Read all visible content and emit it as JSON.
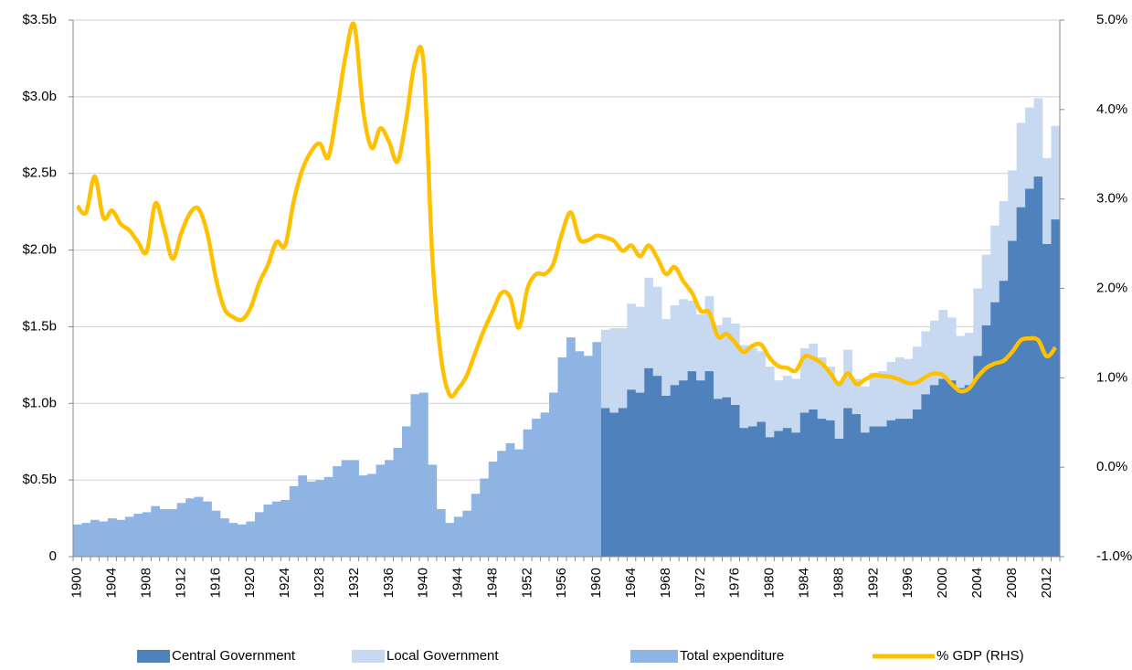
{
  "chart_data": {
    "type": "bar",
    "categories": [
      "1900",
      null,
      null,
      null,
      "1904",
      null,
      null,
      null,
      "1908",
      null,
      null,
      null,
      "1912",
      null,
      null,
      null,
      "1916",
      null,
      null,
      null,
      "1920",
      null,
      null,
      null,
      "1924",
      null,
      null,
      null,
      "1928",
      null,
      null,
      null,
      "1932",
      null,
      null,
      null,
      "1936",
      null,
      null,
      null,
      "1940",
      null,
      null,
      null,
      "1944",
      null,
      null,
      null,
      "1948",
      null,
      null,
      null,
      "1952",
      null,
      null,
      null,
      "1956",
      null,
      null,
      null,
      "1960",
      null,
      null,
      null,
      "1964",
      null,
      null,
      null,
      "1968",
      null,
      null,
      null,
      "1972",
      null,
      null,
      null,
      "1976",
      null,
      null,
      null,
      "1980",
      null,
      null,
      null,
      "1984",
      null,
      null,
      null,
      "1988",
      null,
      null,
      null,
      "1992",
      null,
      null,
      null,
      "1996",
      null,
      null,
      null,
      "2000",
      null,
      null,
      null,
      "2004",
      null,
      null,
      null,
      "2008",
      null,
      null,
      null,
      "2012",
      null
    ],
    "series": [
      {
        "name": "Central Government",
        "color": "#4f81bd",
        "values": [
          null,
          null,
          null,
          null,
          null,
          null,
          null,
          null,
          null,
          null,
          null,
          null,
          null,
          null,
          null,
          null,
          null,
          null,
          null,
          null,
          null,
          null,
          null,
          null,
          null,
          null,
          null,
          null,
          null,
          null,
          null,
          null,
          null,
          null,
          null,
          null,
          null,
          null,
          null,
          null,
          null,
          null,
          null,
          null,
          null,
          null,
          null,
          null,
          null,
          null,
          null,
          null,
          null,
          null,
          null,
          null,
          null,
          null,
          null,
          null,
          null,
          0.97,
          0.94,
          0.97,
          1.09,
          1.07,
          1.23,
          1.18,
          1.05,
          1.12,
          1.15,
          1.21,
          1.15,
          1.21,
          1.03,
          1.04,
          0.99,
          0.84,
          0.85,
          0.88,
          0.78,
          0.82,
          0.84,
          0.81,
          0.94,
          0.96,
          0.9,
          0.89,
          0.77,
          0.97,
          0.93,
          0.81,
          0.85,
          0.85,
          0.89,
          0.9,
          0.9,
          0.96,
          1.06,
          1.12,
          1.16,
          1.15,
          1.1,
          1.12,
          1.31,
          1.51,
          1.66,
          1.8,
          2.06,
          2.28,
          2.4,
          2.48,
          2.04,
          2.2
        ]
      },
      {
        "name": "Local Government",
        "color": "#c6d9f1",
        "values": [
          null,
          null,
          null,
          null,
          null,
          null,
          null,
          null,
          null,
          null,
          null,
          null,
          null,
          null,
          null,
          null,
          null,
          null,
          null,
          null,
          null,
          null,
          null,
          null,
          null,
          null,
          null,
          null,
          null,
          null,
          null,
          null,
          null,
          null,
          null,
          null,
          null,
          null,
          null,
          null,
          null,
          null,
          null,
          null,
          null,
          null,
          null,
          null,
          null,
          null,
          null,
          null,
          null,
          null,
          null,
          null,
          null,
          null,
          null,
          null,
          null,
          0.51,
          0.55,
          0.52,
          0.56,
          0.56,
          0.59,
          0.58,
          0.5,
          0.52,
          0.53,
          0.46,
          0.43,
          0.49,
          0.48,
          0.52,
          0.53,
          0.54,
          0.51,
          0.46,
          0.46,
          0.33,
          0.34,
          0.35,
          0.42,
          0.43,
          0.4,
          0.35,
          0.36,
          0.38,
          0.23,
          0.3,
          0.35,
          0.36,
          0.38,
          0.4,
          0.39,
          0.41,
          0.41,
          0.42,
          0.45,
          0.41,
          0.34,
          0.34,
          0.44,
          0.46,
          0.5,
          0.52,
          0.46,
          0.55,
          0.53,
          0.51,
          0.56,
          0.61
        ]
      },
      {
        "name": "Total expenditure",
        "color": "#8eb4e3",
        "values": [
          0.21,
          0.22,
          0.24,
          0.23,
          0.25,
          0.24,
          0.26,
          0.28,
          0.29,
          0.33,
          0.31,
          0.31,
          0.35,
          0.38,
          0.39,
          0.36,
          0.3,
          0.25,
          0.22,
          0.21,
          0.23,
          0.29,
          0.34,
          0.36,
          0.37,
          0.46,
          0.53,
          0.49,
          0.5,
          0.52,
          0.59,
          0.63,
          0.63,
          0.53,
          0.54,
          0.6,
          0.63,
          0.71,
          0.85,
          1.06,
          1.07,
          0.6,
          0.31,
          0.22,
          0.26,
          0.3,
          0.41,
          0.51,
          0.62,
          0.69,
          0.74,
          0.7,
          0.83,
          0.9,
          0.94,
          1.07,
          1.3,
          1.43,
          1.34,
          1.31,
          1.4,
          null,
          null,
          null,
          null,
          null,
          null,
          null,
          null,
          null,
          null,
          null,
          null,
          null,
          null,
          null,
          null,
          null,
          null,
          null,
          null,
          null,
          null,
          null,
          null,
          null,
          null,
          null,
          null,
          null,
          null,
          null,
          null,
          null,
          null,
          null,
          null,
          null,
          null,
          null,
          null,
          null,
          null,
          null,
          null,
          null,
          null,
          null,
          null,
          null,
          null,
          null,
          null,
          null
        ]
      },
      {
        "name": "% GDP (RHS)",
        "color": "#ffc000",
        "type": "line",
        "axis": "y2",
        "values": [
          2.92,
          2.85,
          3.25,
          2.79,
          2.87,
          2.72,
          2.65,
          2.52,
          2.41,
          2.95,
          2.67,
          2.33,
          2.62,
          2.84,
          2.89,
          2.62,
          2.11,
          1.77,
          1.68,
          1.65,
          1.78,
          2.06,
          2.26,
          2.52,
          2.48,
          2.98,
          3.33,
          3.53,
          3.62,
          3.47,
          4.0,
          4.61,
          4.94,
          4.0,
          3.57,
          3.79,
          3.64,
          3.42,
          3.9,
          4.53,
          4.51,
          2.36,
          1.24,
          0.81,
          0.88,
          1.03,
          1.29,
          1.54,
          1.75,
          1.95,
          1.9,
          1.56,
          2.0,
          2.16,
          2.16,
          2.28,
          2.62,
          2.85,
          2.55,
          2.54,
          2.59,
          2.57,
          2.53,
          2.42,
          2.48,
          2.36,
          2.48,
          2.34,
          2.16,
          2.24,
          2.08,
          1.95,
          1.75,
          1.73,
          1.46,
          1.49,
          1.39,
          1.29,
          1.36,
          1.37,
          1.22,
          1.13,
          1.11,
          1.08,
          1.24,
          1.22,
          1.16,
          1.05,
          0.93,
          1.05,
          0.93,
          0.98,
          1.03,
          1.02,
          1.01,
          0.98,
          0.94,
          0.95,
          1.01,
          1.05,
          1.03,
          0.93,
          0.85,
          0.88,
          1.01,
          1.11,
          1.16,
          1.19,
          1.29,
          1.42,
          1.44,
          1.42,
          1.24,
          1.34
        ]
      }
    ],
    "ylim": [
      0,
      3.5
    ],
    "yticks": [
      0,
      {
        "value": 0.5,
        "label": "$0.5b"
      },
      {
        "value": 1,
        "label": "$1.0b"
      },
      {
        "value": 1.5,
        "label": "$1.5b"
      },
      {
        "value": 2,
        "label": "$2.0b"
      },
      {
        "value": 2.5,
        "label": "$2.5b"
      },
      {
        "value": 3,
        "label": "$3.0b"
      },
      {
        "value": 3.5,
        "label": "$3.5b"
      }
    ],
    "y2lim": [
      -1,
      5
    ],
    "y2ticks": [
      {
        "value": -1,
        "label": "-1.0%"
      },
      {
        "value": 0,
        "label": "0.0%"
      },
      {
        "value": 1,
        "label": "1.0%"
      },
      {
        "value": 2,
        "label": "2.0%"
      },
      {
        "value": 3,
        "label": "3.0%"
      },
      {
        "value": 4,
        "label": "4.0%"
      },
      {
        "value": 5,
        "label": "5.0%"
      }
    ],
    "grid": true,
    "legend": "bottom"
  }
}
